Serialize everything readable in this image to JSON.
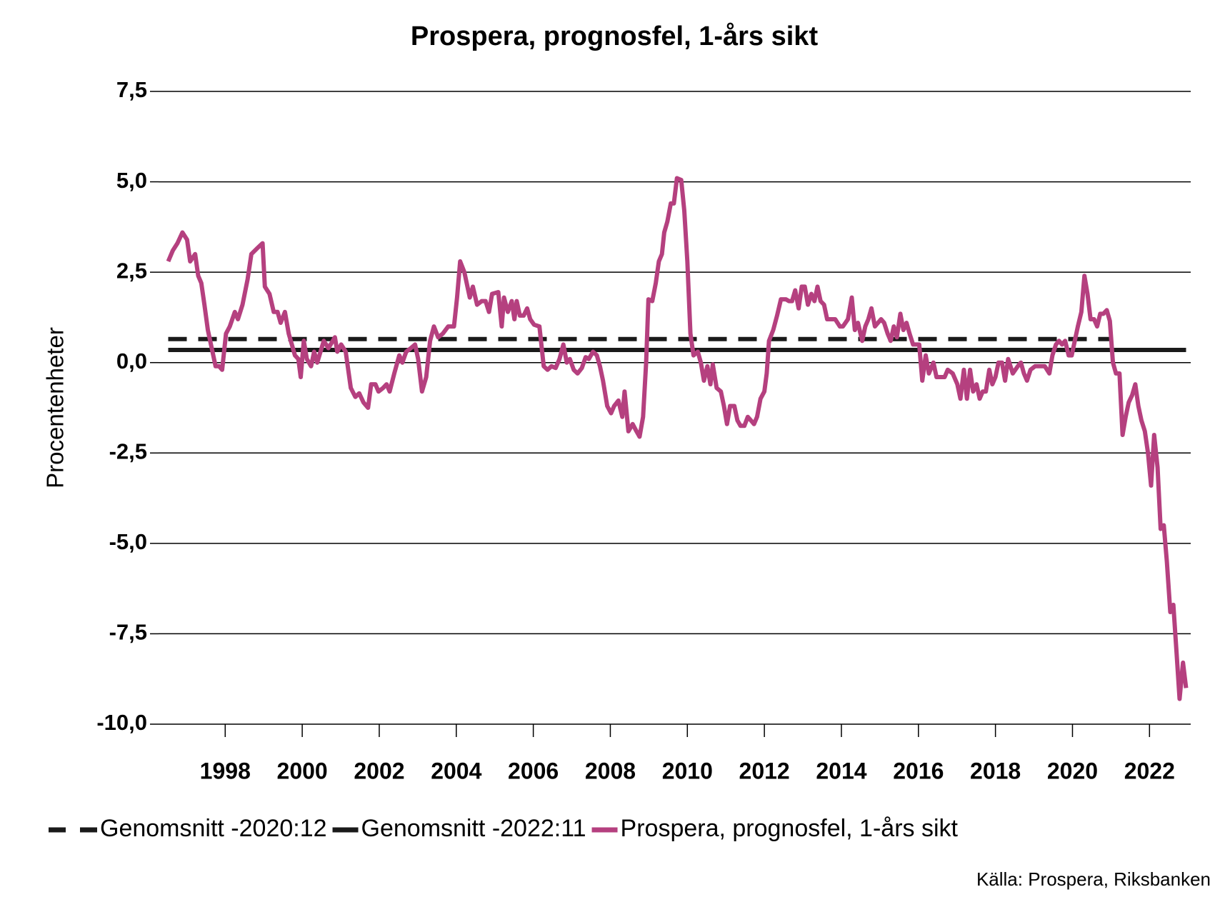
{
  "chart_data": {
    "type": "line",
    "title": "Prospera, prognosfel, 1-års sikt",
    "y_label": "Procentenheter",
    "source": "Källa: Prospera, Riksbanken",
    "xlim": [
      1996.27,
      2023.07
    ],
    "xticks": [
      1998,
      2000,
      2002,
      2004,
      2006,
      2008,
      2010,
      2012,
      2014,
      2016,
      2018,
      2020,
      2022
    ],
    "ylim": [
      -10,
      7.5
    ],
    "yticks": [
      {
        "value": -10,
        "label": "-10,0"
      },
      {
        "value": -7.5,
        "label": "-7,5"
      },
      {
        "value": -5,
        "label": "-5,0"
      },
      {
        "value": -2.5,
        "label": "-2,5"
      },
      {
        "value": 0,
        "label": "0,0"
      },
      {
        "value": 2.5,
        "label": "2,5"
      },
      {
        "value": 5,
        "label": "5,0"
      },
      {
        "value": 7.5,
        "label": "7,5"
      }
    ],
    "grid": true,
    "legend": "bottom",
    "series": [
      {
        "name": "Genomsnitt -2020:12",
        "color": "#1a1a1a",
        "dash": "dashed",
        "x": [
          1996.52,
          2020.97
        ],
        "values": [
          0.65,
          0.65
        ]
      },
      {
        "name": "Genomsnitt -2022:11",
        "color": "#1a1a1a",
        "dash": "solid",
        "x": [
          1996.52,
          2022.95
        ],
        "values": [
          0.35,
          0.35
        ]
      },
      {
        "name": "Prospera, prognosfel, 1-års sikt",
        "color": "#b5407f",
        "dash": "solid",
        "x": [
          1996.52,
          1996.64,
          1996.76,
          1996.89,
          1997.01,
          1997.09,
          1997.22,
          1997.3,
          1997.38,
          1997.46,
          1997.55,
          1997.67,
          1997.75,
          1997.84,
          1997.92,
          1998.02,
          1998.12,
          1998.25,
          1998.33,
          1998.45,
          1998.58,
          1998.68,
          1998.82,
          1998.97,
          1999.03,
          1999.15,
          1999.26,
          1999.36,
          1999.44,
          1999.55,
          1999.65,
          1999.73,
          1999.81,
          1999.9,
          1999.96,
          2000.04,
          2000.12,
          2000.23,
          2000.31,
          2000.39,
          2000.56,
          2000.68,
          2000.85,
          2000.91,
          2001.01,
          2001.13,
          2001.26,
          2001.38,
          2001.48,
          2001.59,
          2001.71,
          2001.79,
          2001.9,
          2001.98,
          2002.1,
          2002.19,
          2002.27,
          2002.39,
          2002.52,
          2002.6,
          2002.7,
          2002.82,
          2002.93,
          2003.01,
          2003.11,
          2003.22,
          2003.32,
          2003.42,
          2003.53,
          2003.65,
          2003.79,
          2003.94,
          2004.02,
          2004.1,
          2004.21,
          2004.35,
          2004.43,
          2004.54,
          2004.66,
          2004.76,
          2004.85,
          2004.93,
          2005.09,
          2005.18,
          2005.24,
          2005.34,
          2005.44,
          2005.51,
          2005.57,
          2005.65,
          2005.75,
          2005.84,
          2005.92,
          2006.02,
          2006.16,
          2006.27,
          2006.37,
          2006.47,
          2006.58,
          2006.68,
          2006.78,
          2006.87,
          2006.95,
          2007.05,
          2007.15,
          2007.26,
          2007.36,
          2007.44,
          2007.55,
          2007.65,
          2007.73,
          2007.81,
          2007.92,
          2008.02,
          2008.1,
          2008.21,
          2008.31,
          2008.37,
          2008.47,
          2008.58,
          2008.68,
          2008.76,
          2008.85,
          2008.93,
          2008.99,
          2009.09,
          2009.18,
          2009.26,
          2009.34,
          2009.4,
          2009.48,
          2009.57,
          2009.65,
          2009.73,
          2009.84,
          2009.92,
          2010.0,
          2010.08,
          2010.16,
          2010.27,
          2010.35,
          2010.43,
          2010.52,
          2010.6,
          2010.66,
          2010.76,
          2010.87,
          2010.95,
          2011.03,
          2011.11,
          2011.22,
          2011.3,
          2011.38,
          2011.48,
          2011.57,
          2011.65,
          2011.73,
          2011.81,
          2011.9,
          2012.0,
          2012.06,
          2012.12,
          2012.23,
          2012.33,
          2012.43,
          2012.56,
          2012.64,
          2012.72,
          2012.8,
          2012.89,
          2012.97,
          2013.05,
          2013.13,
          2013.22,
          2013.3,
          2013.38,
          2013.46,
          2013.55,
          2013.63,
          2013.71,
          2013.84,
          2013.96,
          2014.04,
          2014.17,
          2014.27,
          2014.35,
          2014.43,
          2014.54,
          2014.62,
          2014.7,
          2014.78,
          2014.87,
          2014.95,
          2015.03,
          2015.11,
          2015.2,
          2015.28,
          2015.36,
          2015.44,
          2015.53,
          2015.61,
          2015.69,
          2015.77,
          2015.86,
          2015.94,
          2016.02,
          2016.1,
          2016.19,
          2016.27,
          2016.39,
          2016.47,
          2016.6,
          2016.68,
          2016.76,
          2016.89,
          2017.01,
          2017.09,
          2017.18,
          2017.26,
          2017.34,
          2017.42,
          2017.51,
          2017.59,
          2017.67,
          2017.75,
          2017.84,
          2017.92,
          2018.0,
          2018.08,
          2018.17,
          2018.25,
          2018.33,
          2018.45,
          2018.58,
          2018.66,
          2018.74,
          2018.82,
          2018.91,
          2019.03,
          2019.15,
          2019.28,
          2019.4,
          2019.48,
          2019.57,
          2019.65,
          2019.73,
          2019.81,
          2019.9,
          2019.98,
          2020.06,
          2020.14,
          2020.23,
          2020.31,
          2020.39,
          2020.47,
          2020.56,
          2020.64,
          2020.72,
          2020.8,
          2020.89,
          2020.97,
          2021.05,
          2021.13,
          2021.22,
          2021.3,
          2021.38,
          2021.46,
          2021.55,
          2021.63,
          2021.71,
          2021.79,
          2021.88,
          2021.96,
          2022.04,
          2022.12,
          2022.21,
          2022.29,
          2022.37,
          2022.45,
          2022.54,
          2022.62,
          2022.7,
          2022.78,
          2022.87,
          2022.95
        ],
        "values": [
          2.8,
          3.1,
          3.3,
          3.6,
          3.4,
          2.8,
          3.0,
          2.4,
          2.2,
          1.6,
          0.9,
          0.3,
          -0.1,
          -0.1,
          -0.2,
          0.8,
          1.0,
          1.4,
          1.2,
          1.6,
          2.3,
          3.0,
          3.15,
          3.3,
          2.1,
          1.9,
          1.4,
          1.4,
          1.1,
          1.4,
          0.8,
          0.5,
          0.2,
          0.1,
          -0.4,
          0.6,
          0.1,
          -0.1,
          0.3,
          0.0,
          0.6,
          0.4,
          0.7,
          0.3,
          0.5,
          0.3,
          -0.7,
          -0.95,
          -0.85,
          -1.1,
          -1.25,
          -0.6,
          -0.6,
          -0.8,
          -0.7,
          -0.6,
          -0.8,
          -0.3,
          0.2,
          0.0,
          0.3,
          0.4,
          0.5,
          0.1,
          -0.8,
          -0.4,
          0.6,
          1.0,
          0.7,
          0.8,
          1.0,
          1.0,
          1.8,
          2.8,
          2.5,
          1.8,
          2.1,
          1.6,
          1.7,
          1.7,
          1.4,
          1.9,
          1.95,
          1.0,
          1.8,
          1.4,
          1.7,
          1.2,
          1.7,
          1.3,
          1.3,
          1.5,
          1.2,
          1.05,
          1.0,
          -0.1,
          -0.2,
          -0.1,
          -0.15,
          0.1,
          0.5,
          0.0,
          0.1,
          -0.2,
          -0.3,
          -0.15,
          0.15,
          0.1,
          0.3,
          0.2,
          -0.1,
          -0.5,
          -1.2,
          -1.4,
          -1.2,
          -1.05,
          -1.5,
          -0.8,
          -1.9,
          -1.7,
          -1.9,
          -2.05,
          -1.5,
          0.0,
          1.75,
          1.7,
          2.2,
          2.8,
          3.0,
          3.6,
          3.9,
          4.4,
          4.4,
          5.1,
          5.05,
          4.2,
          2.8,
          0.8,
          0.2,
          0.3,
          0.0,
          -0.5,
          -0.1,
          -0.6,
          -0.05,
          -0.7,
          -0.8,
          -1.2,
          -1.7,
          -1.2,
          -1.2,
          -1.6,
          -1.75,
          -1.75,
          -1.5,
          -1.6,
          -1.7,
          -1.5,
          -1.0,
          -0.8,
          -0.3,
          0.6,
          0.9,
          1.3,
          1.75,
          1.75,
          1.7,
          1.7,
          2.0,
          1.5,
          2.1,
          2.1,
          1.6,
          1.9,
          1.7,
          2.1,
          1.7,
          1.6,
          1.2,
          1.2,
          1.2,
          1.0,
          1.0,
          1.2,
          1.8,
          0.9,
          1.1,
          0.6,
          1.0,
          1.2,
          1.5,
          1.0,
          1.1,
          1.2,
          1.1,
          0.8,
          0.6,
          1.0,
          0.7,
          1.35,
          0.9,
          1.1,
          0.8,
          0.5,
          0.5,
          0.5,
          -0.5,
          0.2,
          -0.3,
          0.0,
          -0.4,
          -0.4,
          -0.4,
          -0.2,
          -0.3,
          -0.6,
          -1.0,
          -0.2,
          -1.0,
          -0.2,
          -0.8,
          -0.6,
          -1.0,
          -0.8,
          -0.8,
          -0.2,
          -0.6,
          -0.4,
          0.0,
          0.0,
          -0.5,
          0.1,
          -0.3,
          -0.1,
          0.0,
          -0.3,
          -0.5,
          -0.2,
          -0.1,
          -0.1,
          -0.1,
          -0.3,
          0.2,
          0.5,
          0.6,
          0.5,
          0.6,
          0.2,
          0.2,
          0.6,
          1.0,
          1.4,
          2.4,
          1.9,
          1.2,
          1.2,
          1.0,
          1.35,
          1.35,
          1.45,
          1.15,
          0.0,
          -0.3,
          -0.3,
          -2.0,
          -1.5,
          -1.1,
          -0.9,
          -0.6,
          -1.2,
          -1.6,
          -1.9,
          -2.5,
          -3.4,
          -2.0,
          -2.9,
          -4.6,
          -4.5,
          -5.5,
          -6.9,
          -6.7,
          -8.0,
          -9.3,
          -8.3,
          -9.0
        ]
      }
    ]
  }
}
